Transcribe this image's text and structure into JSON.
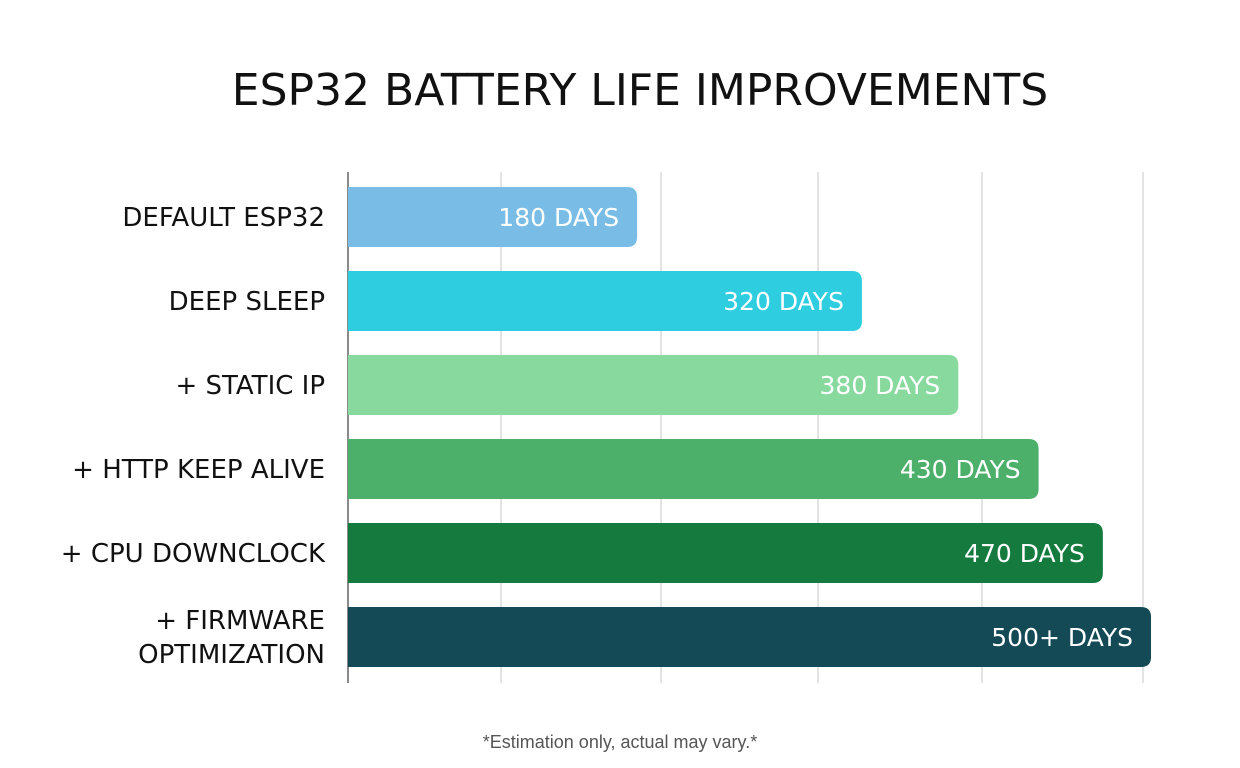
{
  "chart_data": {
    "type": "bar",
    "orientation": "horizontal",
    "title": "ESP32 BATTERY LIFE IMPROVEMENTS",
    "xlabel": "",
    "ylabel": "",
    "categories": [
      [
        "DEFAULT ESP32"
      ],
      [
        "DEEP SLEEP"
      ],
      [
        "+ STATIC IP"
      ],
      [
        "+ HTTP KEEP ALIVE"
      ],
      [
        "+ CPU DOWNCLOCK"
      ],
      [
        "+ FIRMWARE",
        "OPTIMIZATION"
      ]
    ],
    "values": [
      180,
      320,
      380,
      430,
      470,
      500
    ],
    "value_labels": [
      "180 DAYS",
      "320 DAYS",
      "380 DAYS",
      "430 DAYS",
      "470 DAYS",
      "500+ DAYS"
    ],
    "colors": [
      "#79bde6",
      "#2ecde0",
      "#87d99d",
      "#4cb06b",
      "#157a3e",
      "#134a55"
    ],
    "xlim": [
      0,
      495
    ],
    "grid": true,
    "legend": "none",
    "footnote": "*Estimation only, actual may vary.*"
  }
}
